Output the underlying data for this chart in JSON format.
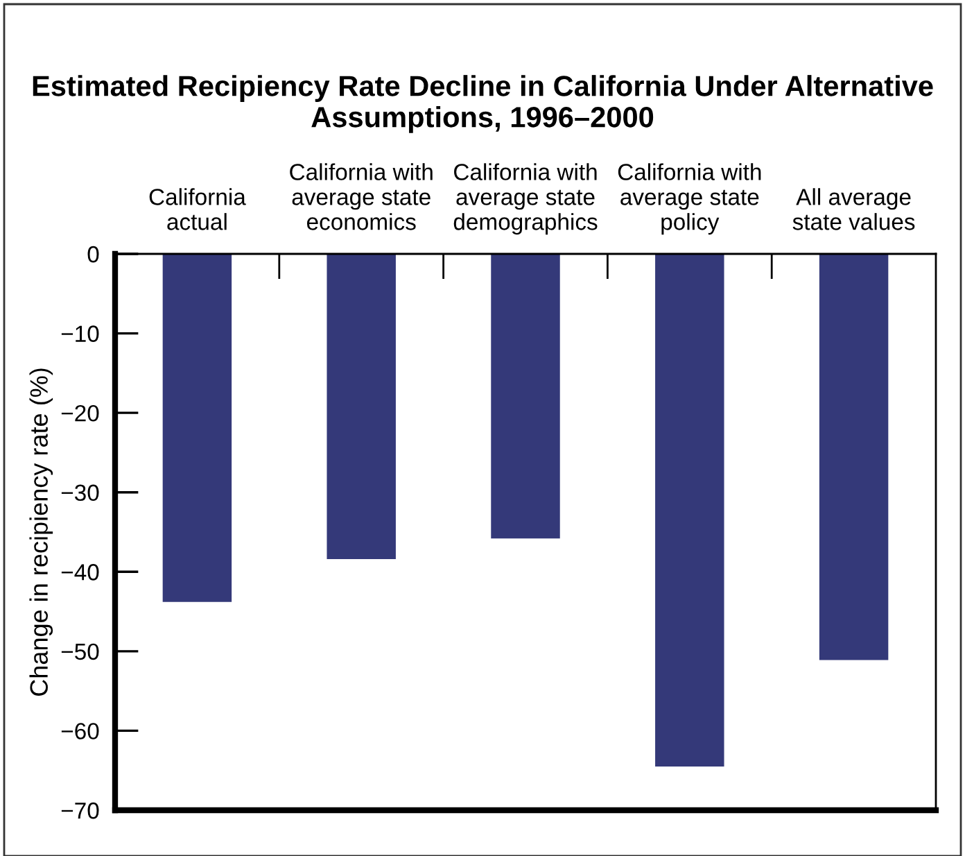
{
  "chart_data": {
    "type": "bar",
    "title": "Estimated Recipiency Rate Decline in California Under Alternative Assumptions, 1996–2000",
    "ylabel": "Change in recipiency rate (%)",
    "categories": [
      "California\nactual",
      "California with\naverage state\neconomics",
      "California with\naverage state\ndemographics",
      "California with\naverage state\npolicy",
      "All average\nstate values"
    ],
    "values": [
      -43.8,
      -38.4,
      -35.8,
      -64.5,
      -51.1
    ],
    "color": "#343979",
    "ylim": [
      -70,
      0
    ],
    "yticks": [
      0,
      -10,
      -20,
      -30,
      -40,
      -50,
      -60,
      -70
    ],
    "grid": false,
    "legend": false
  }
}
